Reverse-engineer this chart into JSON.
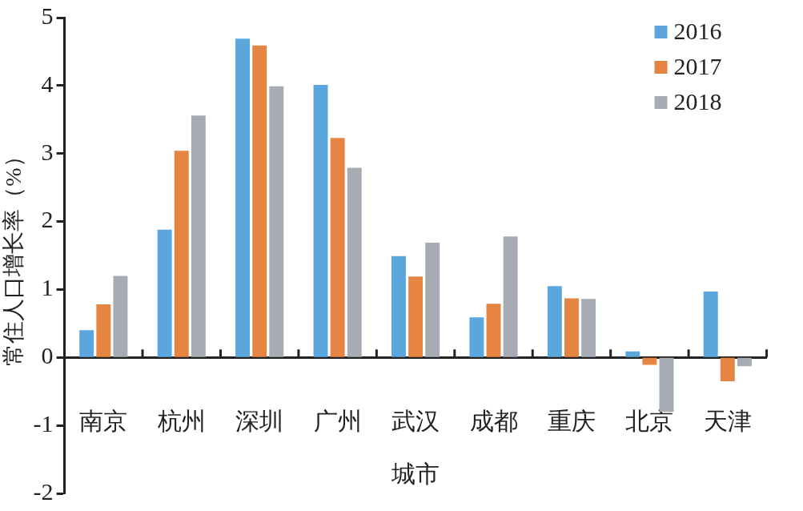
{
  "chart_data": {
    "type": "bar",
    "xlabel": "城市",
    "ylabel": "常住人口增长率（%）",
    "categories": [
      "南京",
      "杭州",
      "深圳",
      "广州",
      "武汉",
      "成都",
      "重庆",
      "北京",
      "天津"
    ],
    "series": [
      {
        "name": "2016",
        "color": "#5ba7dd",
        "values": [
          0.4,
          1.88,
          4.69,
          4.01,
          1.49,
          0.59,
          1.05,
          0.09,
          0.97
        ]
      },
      {
        "name": "2017",
        "color": "#e68542",
        "values": [
          0.78,
          3.04,
          4.59,
          3.23,
          1.19,
          0.79,
          0.87,
          -0.11,
          -0.35
        ]
      },
      {
        "name": "2018",
        "color": "#a7abb3",
        "values": [
          1.2,
          3.56,
          3.99,
          2.79,
          1.69,
          1.78,
          0.86,
          -0.8,
          -0.13
        ]
      }
    ],
    "ylim": [
      -2,
      5
    ],
    "yticks": [
      -2,
      -1,
      0,
      1,
      2,
      3,
      4,
      5
    ],
    "grid": false,
    "legend": "top right"
  }
}
